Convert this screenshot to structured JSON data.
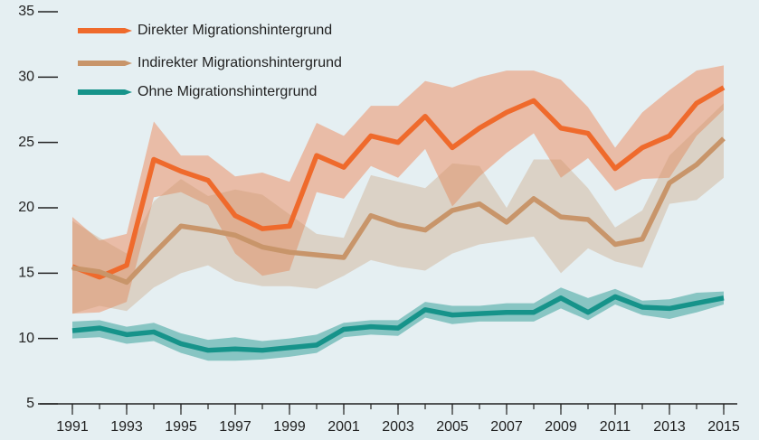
{
  "chart_data": {
    "type": "line",
    "x": [
      1991,
      1992,
      1993,
      1994,
      1995,
      1996,
      1997,
      1998,
      1999,
      2000,
      2001,
      2002,
      2003,
      2004,
      2005,
      2006,
      2007,
      2008,
      2009,
      2010,
      2011,
      2012,
      2013,
      2014,
      2015
    ],
    "xlim": [
      1991,
      2015
    ],
    "xticks": [
      1991,
      1993,
      1995,
      1997,
      1999,
      2001,
      2003,
      2005,
      2007,
      2009,
      2011,
      2013,
      2015
    ],
    "ylim": [
      5,
      35
    ],
    "yticks": [
      5,
      10,
      15,
      20,
      25,
      30,
      35
    ],
    "series": [
      {
        "name": "Direkter Migrationshintergrund",
        "color": "#ef6a2c",
        "values": [
          15.5,
          14.7,
          15.6,
          23.7,
          22.8,
          22.1,
          19.4,
          18.4,
          18.6,
          24.0,
          23.1,
          25.5,
          25.0,
          27.0,
          24.6,
          26.1,
          27.3,
          28.2,
          26.1,
          25.7,
          23.0,
          24.6,
          25.5,
          28.0,
          29.2
        ],
        "upper": [
          19.3,
          17.5,
          18.0,
          26.6,
          24.0,
          24.0,
          22.4,
          22.7,
          22.0,
          26.5,
          25.5,
          27.8,
          27.8,
          29.7,
          29.2,
          30.0,
          30.5,
          30.5,
          29.8,
          27.7,
          24.6,
          27.3,
          29.0,
          30.5,
          30.9
        ],
        "lower": [
          11.9,
          12.0,
          12.8,
          20.8,
          21.2,
          20.2,
          16.5,
          14.8,
          15.2,
          21.2,
          20.7,
          23.2,
          22.3,
          24.5,
          20.1,
          22.4,
          24.2,
          25.7,
          22.3,
          23.8,
          21.3,
          22.2,
          22.3,
          25.5,
          27.5
        ]
      },
      {
        "name": "Indirekter Migrationshintergrund",
        "color": "#c8956a",
        "values": [
          15.4,
          15.1,
          14.3,
          16.5,
          18.6,
          18.3,
          17.9,
          17.0,
          16.6,
          16.4,
          16.2,
          19.4,
          18.7,
          18.3,
          19.8,
          20.3,
          18.9,
          20.7,
          19.3,
          19.1,
          17.2,
          17.6,
          21.9,
          23.3,
          25.3
        ],
        "upper": [
          19.0,
          17.7,
          16.5,
          20.5,
          22.2,
          20.9,
          21.4,
          21.0,
          19.5,
          18.0,
          17.7,
          22.5,
          22.0,
          21.5,
          23.4,
          23.2,
          20.0,
          23.7,
          23.7,
          21.5,
          18.5,
          19.8,
          24.0,
          26.0,
          28.0
        ],
        "lower": [
          11.9,
          12.5,
          12.1,
          13.9,
          15.0,
          15.6,
          14.4,
          14.0,
          14.0,
          13.8,
          14.8,
          16.0,
          15.5,
          15.2,
          16.5,
          17.2,
          17.5,
          17.8,
          15.0,
          16.9,
          15.9,
          15.4,
          20.3,
          20.6,
          22.3
        ]
      },
      {
        "name": "Ohne Migrationshintergrund",
        "color": "#16938a",
        "values": [
          10.6,
          10.8,
          10.3,
          10.5,
          9.6,
          9.1,
          9.2,
          9.1,
          9.3,
          9.5,
          10.7,
          10.9,
          10.8,
          12.2,
          11.8,
          11.9,
          12.0,
          12.0,
          13.1,
          12.0,
          13.2,
          12.4,
          12.3,
          12.7,
          13.1
        ],
        "upper": [
          11.3,
          11.4,
          10.9,
          11.2,
          10.4,
          9.9,
          10.1,
          9.8,
          10.0,
          10.3,
          11.2,
          11.4,
          11.4,
          12.8,
          12.5,
          12.5,
          12.7,
          12.7,
          13.9,
          13.1,
          13.8,
          12.9,
          13.0,
          13.5,
          13.6
        ],
        "lower": [
          10.0,
          10.1,
          9.6,
          9.8,
          8.9,
          8.3,
          8.3,
          8.4,
          8.6,
          8.9,
          10.1,
          10.3,
          10.2,
          11.6,
          11.1,
          11.3,
          11.3,
          11.3,
          12.3,
          11.4,
          12.6,
          11.8,
          11.5,
          12.0,
          12.6
        ]
      }
    ]
  }
}
